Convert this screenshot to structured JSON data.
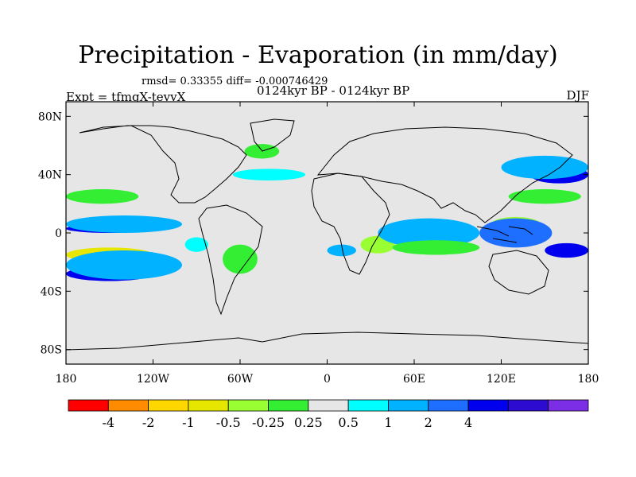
{
  "title": "Precipitation - Evaporation (in mm/day)",
  "stats": "rmsd= 0.33355 diff= -0.000746429",
  "period": "0124kyr BP - 0124kyr BP",
  "experiment": "Expt = tfmgX-tevvX",
  "season": "DJF",
  "map": {
    "projection": "cylindrical-equidistant",
    "lon_range": [
      -180,
      180
    ],
    "lat_range": [
      -90,
      90
    ],
    "background_color": "#e6e6e6",
    "lat_ticks": [
      {
        "value": 80,
        "label": "80N"
      },
      {
        "value": 40,
        "label": "40N"
      },
      {
        "value": 0,
        "label": "0"
      },
      {
        "value": -40,
        "label": "40S"
      },
      {
        "value": -80,
        "label": "80S"
      }
    ],
    "lon_ticks": [
      {
        "value": -180,
        "label": "180"
      },
      {
        "value": -120,
        "label": "120W"
      },
      {
        "value": -60,
        "label": "60W"
      },
      {
        "value": 0,
        "label": "0"
      },
      {
        "value": 60,
        "label": "60E"
      },
      {
        "value": 120,
        "label": "120E"
      },
      {
        "value": 180,
        "label": "180"
      }
    ]
  },
  "colorbar": {
    "colors": [
      "#ff0000",
      "#ff8c00",
      "#ffd700",
      "#e6e600",
      "#99ff33",
      "#33ee33",
      "#e6e6e6",
      "#00ffff",
      "#00b2ff",
      "#1e6eff",
      "#0000ee",
      "#2e0bd0",
      "#7b2ee6"
    ],
    "labels": [
      "-4",
      "-2",
      "-1",
      "-0.5",
      "-0.25",
      "0.25",
      "0.5",
      "1",
      "2",
      "4"
    ],
    "label_boundary_index": [
      1,
      2,
      3,
      4,
      5,
      6,
      7,
      8,
      9,
      10
    ]
  },
  "anomaly_patches": [
    {
      "lon": -150,
      "lat": 3,
      "rlon": 30,
      "rlat": 3,
      "level": 10
    },
    {
      "lon": -140,
      "lat": 6,
      "rlon": 40,
      "rlat": 6,
      "level": 8
    },
    {
      "lon": -155,
      "lat": 25,
      "rlon": 25,
      "rlat": 5,
      "level": 5
    },
    {
      "lon": -150,
      "lat": -15,
      "rlon": 30,
      "rlat": 5,
      "level": 3
    },
    {
      "lon": -150,
      "lat": -28,
      "rlon": 30,
      "rlat": 5,
      "level": 10
    },
    {
      "lon": -140,
      "lat": -22,
      "rlon": 40,
      "rlat": 10,
      "level": 8
    },
    {
      "lon": -60,
      "lat": -18,
      "rlon": 12,
      "rlat": 10,
      "level": 5
    },
    {
      "lon": -90,
      "lat": -8,
      "rlon": 8,
      "rlat": 5,
      "level": 7
    },
    {
      "lon": -45,
      "lat": 56,
      "rlon": 12,
      "rlat": 5,
      "level": 5
    },
    {
      "lon": -40,
      "lat": 40,
      "rlon": 25,
      "rlat": 4,
      "level": 7
    },
    {
      "lon": 10,
      "lat": -12,
      "rlon": 10,
      "rlat": 4,
      "level": 8
    },
    {
      "lon": 35,
      "lat": -8,
      "rlon": 12,
      "rlat": 6,
      "level": 4
    },
    {
      "lon": 70,
      "lat": 2,
      "rlon": 25,
      "rlat": 5,
      "level": 10
    },
    {
      "lon": 70,
      "lat": 0,
      "rlon": 35,
      "rlat": 10,
      "level": 8
    },
    {
      "lon": 75,
      "lat": -10,
      "rlon": 30,
      "rlat": 5,
      "level": 5
    },
    {
      "lon": 130,
      "lat": 5,
      "rlon": 18,
      "rlat": 6,
      "level": 4
    },
    {
      "lon": 130,
      "lat": 0,
      "rlon": 25,
      "rlat": 10,
      "level": 9
    },
    {
      "lon": 165,
      "lat": -12,
      "rlon": 15,
      "rlat": 5,
      "level": 10
    },
    {
      "lon": 160,
      "lat": 40,
      "rlon": 20,
      "rlat": 6,
      "level": 10
    },
    {
      "lon": 150,
      "lat": 45,
      "rlon": 30,
      "rlat": 8,
      "level": 8
    },
    {
      "lon": 150,
      "lat": 25,
      "rlon": 25,
      "rlat": 5,
      "level": 5
    }
  ]
}
